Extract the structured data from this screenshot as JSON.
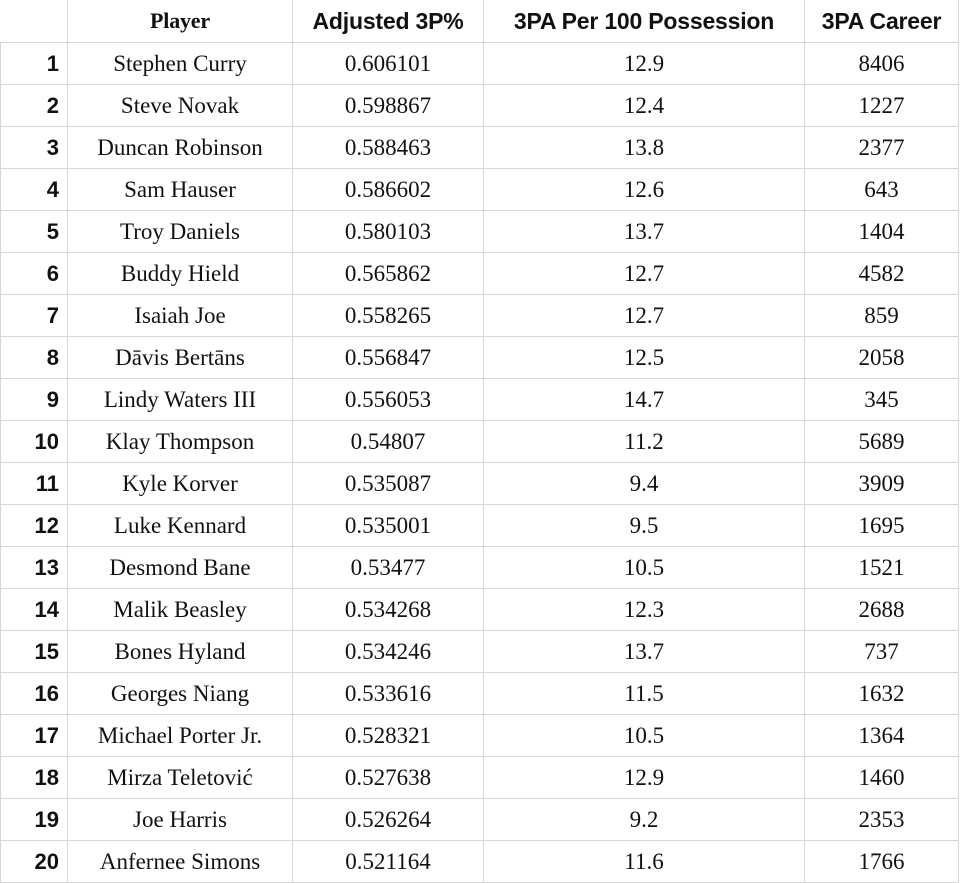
{
  "table": {
    "columns": [
      "",
      "Player",
      "Adjusted 3P%",
      "3PA Per 100 Possession",
      "3PA Career"
    ],
    "rows": [
      {
        "rank": "1",
        "player": "Stephen Curry",
        "adj3p": "0.606101",
        "per100": "12.9",
        "career": "8406"
      },
      {
        "rank": "2",
        "player": "Steve Novak",
        "adj3p": "0.598867",
        "per100": "12.4",
        "career": "1227"
      },
      {
        "rank": "3",
        "player": "Duncan Robinson",
        "adj3p": "0.588463",
        "per100": "13.8",
        "career": "2377"
      },
      {
        "rank": "4",
        "player": "Sam Hauser",
        "adj3p": "0.586602",
        "per100": "12.6",
        "career": "643"
      },
      {
        "rank": "5",
        "player": "Troy Daniels",
        "adj3p": "0.580103",
        "per100": "13.7",
        "career": "1404"
      },
      {
        "rank": "6",
        "player": "Buddy Hield",
        "adj3p": "0.565862",
        "per100": "12.7",
        "career": "4582"
      },
      {
        "rank": "7",
        "player": "Isaiah Joe",
        "adj3p": "0.558265",
        "per100": "12.7",
        "career": "859"
      },
      {
        "rank": "8",
        "player": "Dāvis Bertāns",
        "adj3p": "0.556847",
        "per100": "12.5",
        "career": "2058"
      },
      {
        "rank": "9",
        "player": "Lindy Waters III",
        "adj3p": "0.556053",
        "per100": "14.7",
        "career": "345"
      },
      {
        "rank": "10",
        "player": "Klay Thompson",
        "adj3p": "0.54807",
        "per100": "11.2",
        "career": "5689"
      },
      {
        "rank": "11",
        "player": "Kyle Korver",
        "adj3p": "0.535087",
        "per100": "9.4",
        "career": "3909"
      },
      {
        "rank": "12",
        "player": "Luke Kennard",
        "adj3p": "0.535001",
        "per100": "9.5",
        "career": "1695"
      },
      {
        "rank": "13",
        "player": "Desmond Bane",
        "adj3p": "0.53477",
        "per100": "10.5",
        "career": "1521"
      },
      {
        "rank": "14",
        "player": "Malik Beasley",
        "adj3p": "0.534268",
        "per100": "12.3",
        "career": "2688"
      },
      {
        "rank": "15",
        "player": "Bones Hyland",
        "adj3p": "0.534246",
        "per100": "13.7",
        "career": "737"
      },
      {
        "rank": "16",
        "player": "Georges Niang",
        "adj3p": "0.533616",
        "per100": "11.5",
        "career": "1632"
      },
      {
        "rank": "17",
        "player": "Michael Porter Jr.",
        "adj3p": "0.528321",
        "per100": "10.5",
        "career": "1364"
      },
      {
        "rank": "18",
        "player": "Mirza Teletović",
        "adj3p": "0.527638",
        "per100": "12.9",
        "career": "1460"
      },
      {
        "rank": "19",
        "player": "Joe Harris",
        "adj3p": "0.526264",
        "per100": "9.2",
        "career": "2353"
      },
      {
        "rank": "20",
        "player": "Anfernee Simons",
        "adj3p": "0.521164",
        "per100": "11.6",
        "career": "1766"
      }
    ]
  }
}
